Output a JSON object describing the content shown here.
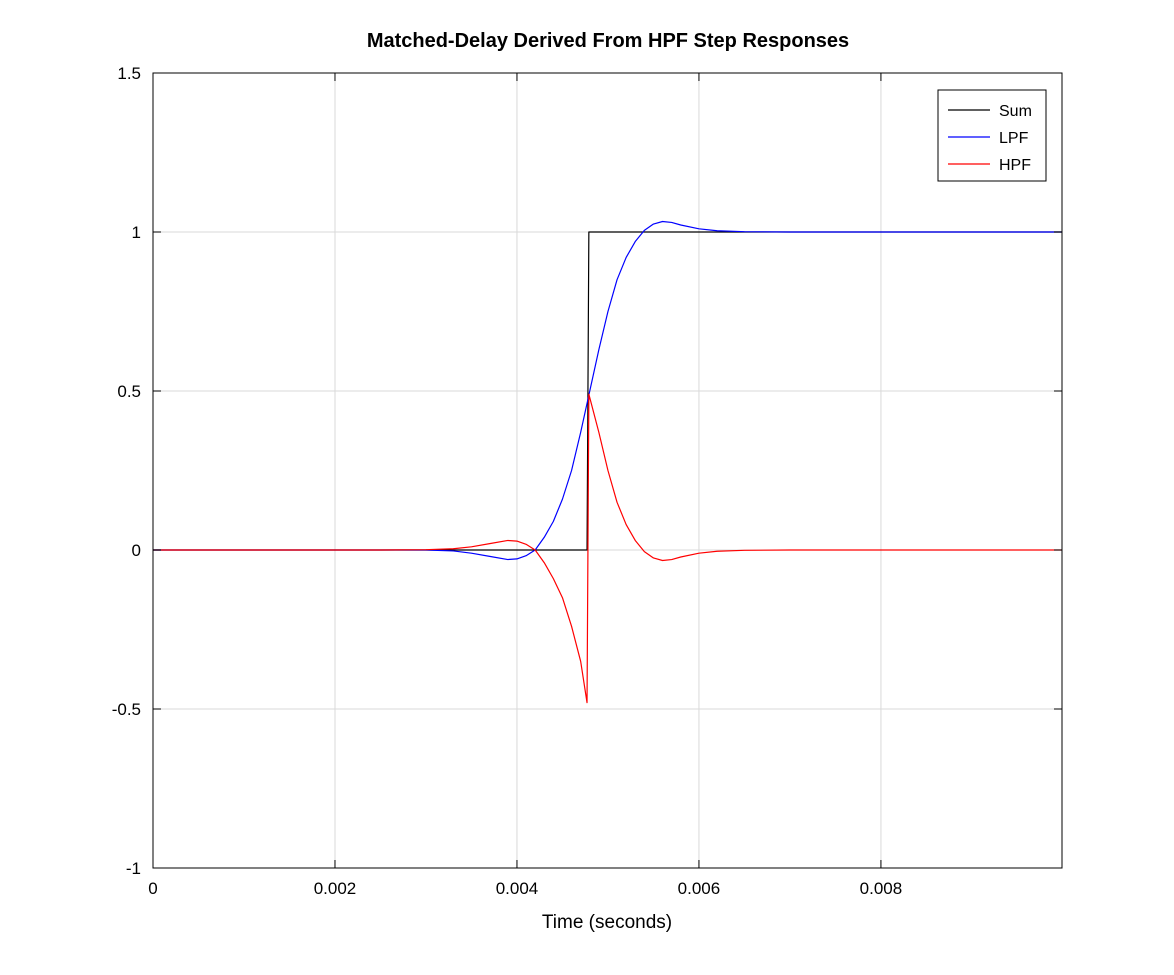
{
  "chart_data": {
    "type": "line",
    "title": "Matched-Delay Derived From HPF Step Responses",
    "xlabel": "Time (seconds)",
    "ylabel": "",
    "xlim": [
      0,
      0.00999
    ],
    "ylim": [
      -1,
      1.5
    ],
    "xticks": [
      0,
      0.002,
      0.004,
      0.006,
      0.008
    ],
    "xtick_labels": [
      "0",
      "0.002",
      "0.004",
      "0.006",
      "0.008"
    ],
    "yticks": [
      -1,
      -0.5,
      0,
      0.5,
      1,
      1.5
    ],
    "ytick_labels": [
      "-1",
      "-0.5",
      "0",
      "0.5",
      "1",
      "1.5"
    ],
    "grid": true,
    "legend_position": "top-right",
    "series": [
      {
        "name": "Sum",
        "color": "#000000",
        "points": [
          [
            0,
            0
          ],
          [
            0.00477,
            0
          ],
          [
            0.00478,
            0.5
          ],
          [
            0.00479,
            1
          ],
          [
            0.00999,
            1
          ]
        ]
      },
      {
        "name": "LPF",
        "color": "#0000ff",
        "points": [
          [
            0,
            0
          ],
          [
            0.0025,
            0
          ],
          [
            0.003,
            0
          ],
          [
            0.0033,
            -0.003
          ],
          [
            0.0035,
            -0.01
          ],
          [
            0.0037,
            -0.02
          ],
          [
            0.0039,
            -0.03
          ],
          [
            0.004,
            -0.028
          ],
          [
            0.0041,
            -0.018
          ],
          [
            0.0042,
            0
          ],
          [
            0.0043,
            0.04
          ],
          [
            0.0044,
            0.09
          ],
          [
            0.0045,
            0.16
          ],
          [
            0.0046,
            0.25
          ],
          [
            0.0047,
            0.37
          ],
          [
            0.0048,
            0.5
          ],
          [
            0.0049,
            0.63
          ],
          [
            0.005,
            0.75
          ],
          [
            0.0051,
            0.85
          ],
          [
            0.0052,
            0.92
          ],
          [
            0.0053,
            0.97
          ],
          [
            0.0054,
            1.005
          ],
          [
            0.0055,
            1.025
          ],
          [
            0.0056,
            1.033
          ],
          [
            0.0057,
            1.03
          ],
          [
            0.0058,
            1.022
          ],
          [
            0.006,
            1.01
          ],
          [
            0.0062,
            1.004
          ],
          [
            0.0065,
            1.001
          ],
          [
            0.007,
            1.0
          ],
          [
            0.00999,
            1.0
          ]
        ]
      },
      {
        "name": "HPF",
        "color": "#ff0000",
        "points": [
          [
            0,
            0
          ],
          [
            0.0025,
            0
          ],
          [
            0.003,
            0.001
          ],
          [
            0.0033,
            0.004
          ],
          [
            0.0035,
            0.01
          ],
          [
            0.0037,
            0.02
          ],
          [
            0.0039,
            0.03
          ],
          [
            0.004,
            0.028
          ],
          [
            0.0041,
            0.018
          ],
          [
            0.0042,
            0
          ],
          [
            0.0043,
            -0.04
          ],
          [
            0.0044,
            -0.09
          ],
          [
            0.0045,
            -0.15
          ],
          [
            0.0046,
            -0.24
          ],
          [
            0.0047,
            -0.35
          ],
          [
            0.00477,
            -0.48
          ],
          [
            0.00479,
            0.49
          ],
          [
            0.0049,
            0.37
          ],
          [
            0.005,
            0.25
          ],
          [
            0.0051,
            0.15
          ],
          [
            0.0052,
            0.08
          ],
          [
            0.0053,
            0.03
          ],
          [
            0.0054,
            -0.005
          ],
          [
            0.0055,
            -0.025
          ],
          [
            0.0056,
            -0.033
          ],
          [
            0.0057,
            -0.03
          ],
          [
            0.0058,
            -0.022
          ],
          [
            0.006,
            -0.01
          ],
          [
            0.0062,
            -0.004
          ],
          [
            0.0065,
            -0.001
          ],
          [
            0.007,
            0
          ],
          [
            0.00999,
            0
          ]
        ]
      }
    ]
  }
}
